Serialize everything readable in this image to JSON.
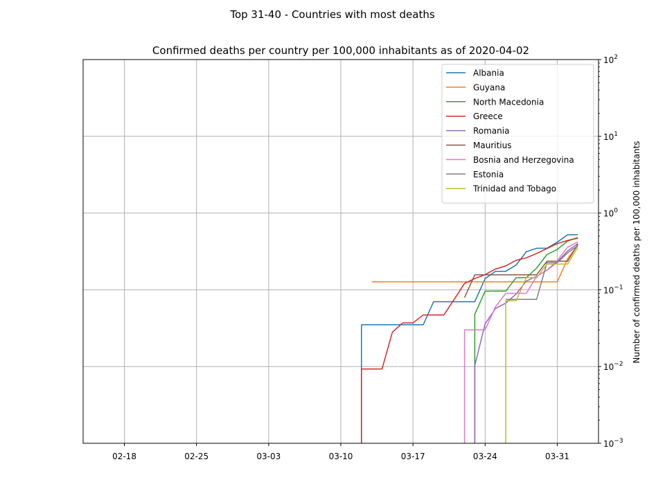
{
  "chart_data": {
    "type": "line",
    "suptitle": "Top 31-40 - Countries with most deaths",
    "title": "Confirmed deaths per country per 100,000 inhabitants as of 2020-04-02",
    "xlabel": "",
    "ylabel": "Number of confirmed deaths per 100,000 inhabitants",
    "yscale": "log",
    "ylim": [
      0.001,
      100
    ],
    "xlim": [
      "2020-02-14",
      "2020-04-04"
    ],
    "x_ticks": [
      {
        "date": "2020-02-18",
        "label": "02-18"
      },
      {
        "date": "2020-02-25",
        "label": "02-25"
      },
      {
        "date": "2020-03-03",
        "label": "03-03"
      },
      {
        "date": "2020-03-10",
        "label": "03-10"
      },
      {
        "date": "2020-03-17",
        "label": "03-17"
      },
      {
        "date": "2020-03-24",
        "label": "03-24"
      },
      {
        "date": "2020-03-31",
        "label": "03-31"
      }
    ],
    "y_ticks": [
      {
        "value": 0.001,
        "base": "10",
        "exp": "−3"
      },
      {
        "value": 0.01,
        "base": "10",
        "exp": "−2"
      },
      {
        "value": 0.1,
        "base": "10",
        "exp": "−1"
      },
      {
        "value": 1,
        "base": "10",
        "exp": "0"
      },
      {
        "value": 10,
        "base": "10",
        "exp": "1"
      },
      {
        "value": 100,
        "base": "10",
        "exp": "2"
      }
    ],
    "grid": true,
    "legend_position": "upper right",
    "series": [
      {
        "name": "Albania",
        "color": "#1f77b4",
        "points": [
          [
            "2020-03-12",
            0.001
          ],
          [
            "2020-03-12",
            0.035
          ],
          [
            "2020-03-13",
            0.035
          ],
          [
            "2020-03-14",
            0.035
          ],
          [
            "2020-03-15",
            0.035
          ],
          [
            "2020-03-16",
            0.035
          ],
          [
            "2020-03-17",
            0.035
          ],
          [
            "2020-03-18",
            0.035
          ],
          [
            "2020-03-19",
            0.07
          ],
          [
            "2020-03-20",
            0.07
          ],
          [
            "2020-03-21",
            0.07
          ],
          [
            "2020-03-22",
            0.07
          ],
          [
            "2020-03-23",
            0.07
          ],
          [
            "2020-03-24",
            0.14
          ],
          [
            "2020-03-25",
            0.174
          ],
          [
            "2020-03-26",
            0.174
          ],
          [
            "2020-03-27",
            0.21
          ],
          [
            "2020-03-28",
            0.313
          ],
          [
            "2020-03-29",
            0.348
          ],
          [
            "2020-03-30",
            0.348
          ],
          [
            "2020-03-31",
            0.418
          ],
          [
            "2020-04-01",
            0.522
          ],
          [
            "2020-04-02",
            0.522
          ]
        ]
      },
      {
        "name": "Guyana",
        "color": "#ff7f0e",
        "points": [
          [
            "2020-03-13",
            0.127
          ],
          [
            "2020-03-14",
            0.127
          ],
          [
            "2020-03-15",
            0.127
          ],
          [
            "2020-03-16",
            0.127
          ],
          [
            "2020-03-17",
            0.127
          ],
          [
            "2020-03-18",
            0.127
          ],
          [
            "2020-03-19",
            0.127
          ],
          [
            "2020-03-20",
            0.127
          ],
          [
            "2020-03-21",
            0.127
          ],
          [
            "2020-03-22",
            0.127
          ],
          [
            "2020-03-23",
            0.127
          ],
          [
            "2020-03-24",
            0.127
          ],
          [
            "2020-03-25",
            0.127
          ],
          [
            "2020-03-26",
            0.127
          ],
          [
            "2020-03-27",
            0.127
          ],
          [
            "2020-03-28",
            0.127
          ],
          [
            "2020-03-29",
            0.127
          ],
          [
            "2020-03-30",
            0.127
          ],
          [
            "2020-03-31",
            0.127
          ],
          [
            "2020-04-01",
            0.255
          ],
          [
            "2020-04-02",
            0.382
          ]
        ]
      },
      {
        "name": "North Macedonia",
        "color": "#2ca02c",
        "points": [
          [
            "2020-03-23",
            0.001
          ],
          [
            "2020-03-23",
            0.048
          ],
          [
            "2020-03-24",
            0.096
          ],
          [
            "2020-03-25",
            0.096
          ],
          [
            "2020-03-26",
            0.096
          ],
          [
            "2020-03-27",
            0.144
          ],
          [
            "2020-03-28",
            0.144
          ],
          [
            "2020-03-29",
            0.192
          ],
          [
            "2020-03-30",
            0.288
          ],
          [
            "2020-03-31",
            0.336
          ],
          [
            "2020-04-01",
            0.432
          ],
          [
            "2020-04-02",
            0.48
          ]
        ]
      },
      {
        "name": "Greece",
        "color": "#d62728",
        "points": [
          [
            "2020-03-12",
            0.001
          ],
          [
            "2020-03-12",
            0.0093
          ],
          [
            "2020-03-13",
            0.0093
          ],
          [
            "2020-03-14",
            0.0093
          ],
          [
            "2020-03-15",
            0.028
          ],
          [
            "2020-03-16",
            0.037
          ],
          [
            "2020-03-17",
            0.037
          ],
          [
            "2020-03-18",
            0.047
          ],
          [
            "2020-03-19",
            0.047
          ],
          [
            "2020-03-20",
            0.047
          ],
          [
            "2020-03-21",
            0.075
          ],
          [
            "2020-03-22",
            0.121
          ],
          [
            "2020-03-23",
            0.14
          ],
          [
            "2020-03-24",
            0.158
          ],
          [
            "2020-03-25",
            0.186
          ],
          [
            "2020-03-26",
            0.205
          ],
          [
            "2020-03-27",
            0.242
          ],
          [
            "2020-03-28",
            0.261
          ],
          [
            "2020-03-29",
            0.298
          ],
          [
            "2020-03-30",
            0.345
          ],
          [
            "2020-03-31",
            0.4
          ],
          [
            "2020-04-01",
            0.44
          ],
          [
            "2020-04-02",
            0.47
          ]
        ]
      },
      {
        "name": "Romania",
        "color": "#9467bd",
        "points": [
          [
            "2020-03-23",
            0.001
          ],
          [
            "2020-03-23",
            0.0103
          ],
          [
            "2020-03-24",
            0.036
          ],
          [
            "2020-03-25",
            0.057
          ],
          [
            "2020-03-26",
            0.067
          ],
          [
            "2020-03-27",
            0.088
          ],
          [
            "2020-03-28",
            0.13
          ],
          [
            "2020-03-29",
            0.15
          ],
          [
            "2020-03-30",
            0.18
          ],
          [
            "2020-03-31",
            0.23
          ],
          [
            "2020-04-01",
            0.32
          ],
          [
            "2020-04-02",
            0.4
          ]
        ]
      },
      {
        "name": "Mauritius",
        "color": "#8c564b",
        "points": [
          [
            "2020-03-22",
            0.079
          ],
          [
            "2020-03-23",
            0.157
          ],
          [
            "2020-03-24",
            0.157
          ],
          [
            "2020-03-25",
            0.157
          ],
          [
            "2020-03-26",
            0.157
          ],
          [
            "2020-03-27",
            0.157
          ],
          [
            "2020-03-28",
            0.157
          ],
          [
            "2020-03-29",
            0.157
          ],
          [
            "2020-03-30",
            0.236
          ],
          [
            "2020-03-31",
            0.236
          ],
          [
            "2020-04-01",
            0.236
          ],
          [
            "2020-04-02",
            0.393
          ]
        ]
      },
      {
        "name": "Bosnia and Herzegovina",
        "color": "#e377c2",
        "points": [
          [
            "2020-03-22",
            0.001
          ],
          [
            "2020-03-22",
            0.03
          ],
          [
            "2020-03-23",
            0.03
          ],
          [
            "2020-03-24",
            0.03
          ],
          [
            "2020-03-25",
            0.06
          ],
          [
            "2020-03-26",
            0.09
          ],
          [
            "2020-03-27",
            0.09
          ],
          [
            "2020-03-28",
            0.09
          ],
          [
            "2020-03-29",
            0.15
          ],
          [
            "2020-03-30",
            0.18
          ],
          [
            "2020-03-31",
            0.24
          ],
          [
            "2020-04-01",
            0.36
          ],
          [
            "2020-04-02",
            0.42
          ]
        ]
      },
      {
        "name": "Estonia",
        "color": "#7f7f7f",
        "points": [
          [
            "2020-03-26",
            0.075
          ],
          [
            "2020-03-27",
            0.075
          ],
          [
            "2020-03-28",
            0.075
          ],
          [
            "2020-03-29",
            0.075
          ],
          [
            "2020-03-30",
            0.226
          ],
          [
            "2020-03-31",
            0.226
          ],
          [
            "2020-04-01",
            0.302
          ],
          [
            "2020-04-02",
            0.377
          ]
        ]
      },
      {
        "name": "Trinidad and Tobago",
        "color": "#bcbd22",
        "points": [
          [
            "2020-03-26",
            0.001
          ],
          [
            "2020-03-26",
            0.072
          ],
          [
            "2020-03-27",
            0.072
          ],
          [
            "2020-03-28",
            0.144
          ],
          [
            "2020-03-29",
            0.144
          ],
          [
            "2020-03-30",
            0.216
          ],
          [
            "2020-03-31",
            0.216
          ],
          [
            "2020-04-01",
            0.216
          ],
          [
            "2020-04-02",
            0.36
          ]
        ]
      }
    ]
  }
}
